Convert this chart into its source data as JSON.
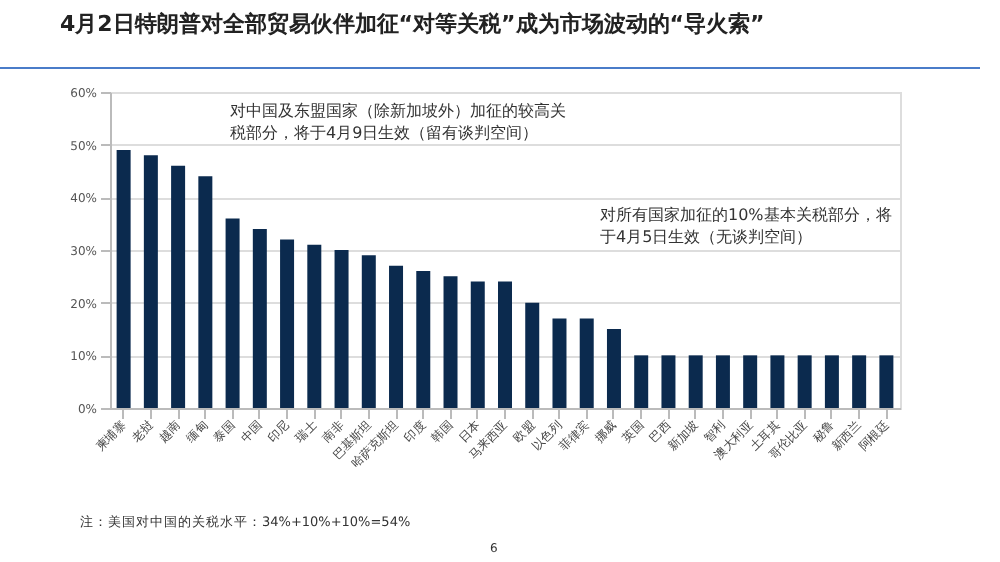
{
  "chart_data": {
    "type": "bar",
    "title": "4月2日特朗普对全部贸易伙伴加征“对等关税”成为市场波动的“导火索”",
    "categories": [
      "柬埔寨",
      "老挝",
      "越南",
      "缅甸",
      "泰国",
      "中国",
      "印尼",
      "瑞士",
      "南非",
      "巴基斯坦",
      "哈萨克斯坦",
      "印度",
      "韩国",
      "日本",
      "马来西亚",
      "欧盟",
      "以色列",
      "菲律宾",
      "挪威",
      "英国",
      "巴西",
      "新加坡",
      "智利",
      "澳大利亚",
      "土耳其",
      "哥伦比亚",
      "秘鲁",
      "新西兰",
      "阿根廷"
    ],
    "values": [
      49,
      48,
      46,
      44,
      36,
      34,
      32,
      31,
      30,
      29,
      27,
      26,
      25,
      24,
      24,
      20,
      17,
      17,
      15,
      10,
      10,
      10,
      10,
      10,
      10,
      10,
      10,
      10,
      10
    ],
    "color": "#0b2a4e",
    "ylim": [
      0,
      60
    ],
    "yticks": [
      {
        "value": 0,
        "label": "0%"
      },
      {
        "value": 10,
        "label": "10%"
      },
      {
        "value": 20,
        "label": "20%"
      },
      {
        "value": 30,
        "label": "30%"
      },
      {
        "value": 40,
        "label": "40%"
      },
      {
        "value": 50,
        "label": "50%"
      },
      {
        "value": 60,
        "label": "60%"
      }
    ],
    "grid": "y",
    "annotations": [
      "对中国及东盟国家（除新加坡外）加征的较高关税部分，将于4月9日生效（留有谈判空间）",
      "对所有国家加征的10%基本关税部分，将于4月5日生效（无谈判空间）",
      "注：美国对中国的关税水平：34%+10%+10%=54%",
      "6"
    ]
  }
}
